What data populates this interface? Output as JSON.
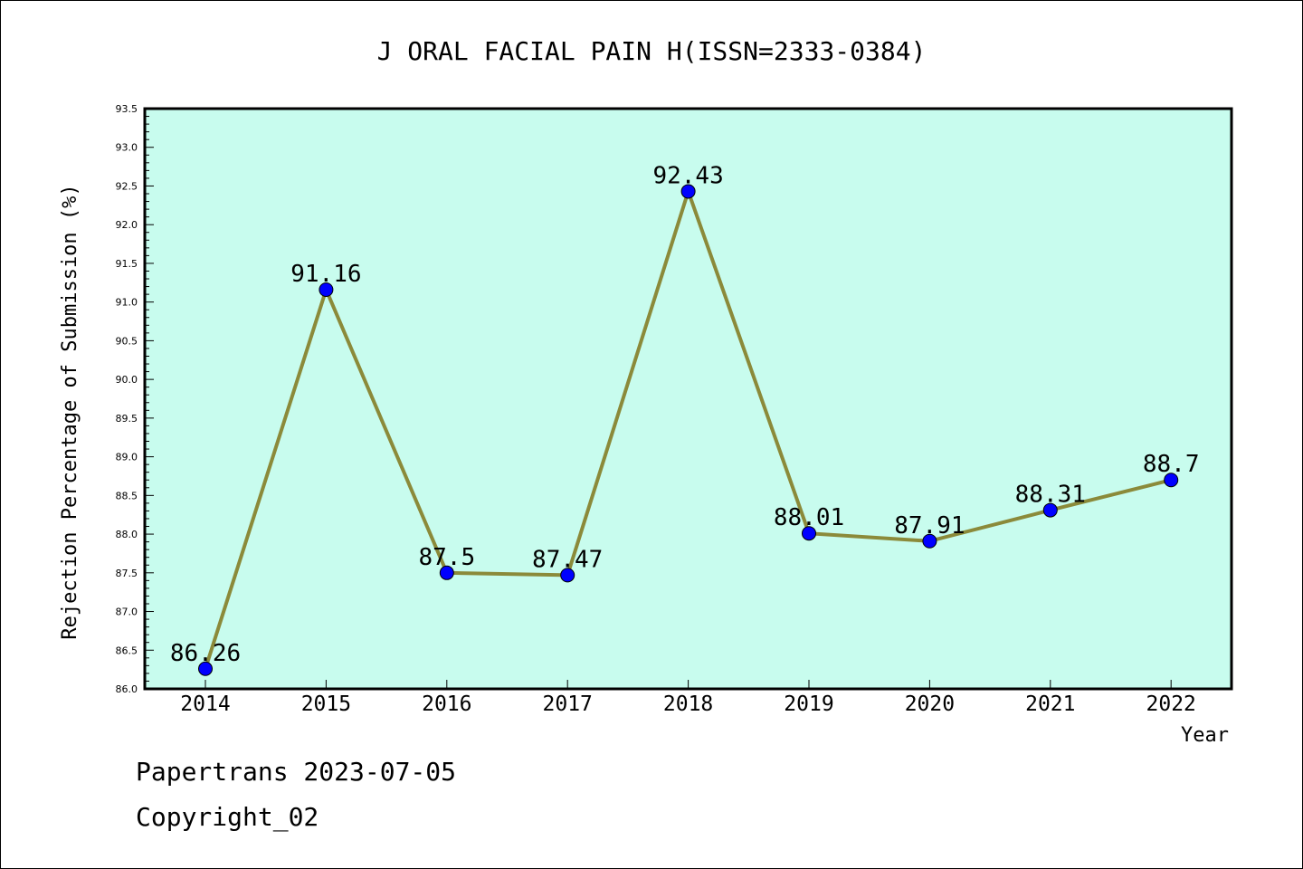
{
  "chart_data": {
    "type": "line",
    "title": "J ORAL FACIAL PAIN H(ISSN=2333-0384)",
    "xlabel": "Year",
    "ylabel": "Rejection Percentage of Submission (%)",
    "categories": [
      "2014",
      "2015",
      "2016",
      "2017",
      "2018",
      "2019",
      "2020",
      "2021",
      "2022"
    ],
    "series": [
      {
        "values": [
          86.26,
          91.16,
          87.5,
          87.47,
          92.43,
          88.01,
          87.91,
          88.31,
          88.7
        ],
        "labels": [
          "86.26",
          "91.16",
          "87.5",
          "87.47",
          "92.43",
          "88.01",
          "87.91",
          "88.31",
          "88.7"
        ],
        "line_color": "#8b8a3a",
        "marker_color": "#0000ff"
      }
    ],
    "ylim": [
      86.0,
      93.5
    ],
    "yticks": [
      "86.0",
      "86.5",
      "87.0",
      "87.5",
      "88.0",
      "88.5",
      "89.0",
      "89.5",
      "90.0",
      "90.5",
      "91.0",
      "91.5",
      "92.0",
      "92.5",
      "93.0",
      "93.5"
    ],
    "grid": false,
    "plot_background": "#c8fcee"
  },
  "footer": {
    "date_line": "Papertrans 2023-07-05",
    "copyright_line": "Copyright_02"
  }
}
